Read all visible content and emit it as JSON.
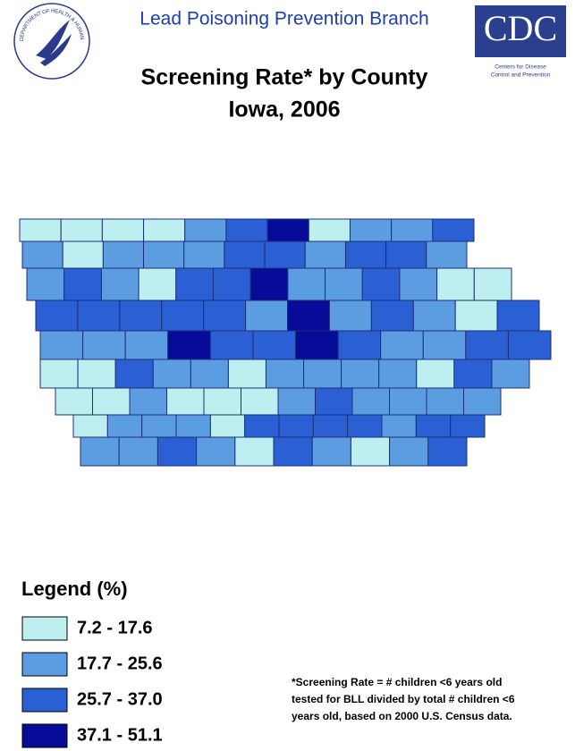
{
  "header": {
    "branch": "Lead Poisoning Prevention Branch",
    "seal_text": "DEPARTMENT OF HEALTH & HUMAN SERVICES·USA",
    "cdc_logo": "CDC",
    "cdc_name_lines": [
      "Centers for Disease",
      "Control and Prevention"
    ]
  },
  "title": [
    "Screening Rate* by County",
    "Iowa, 2006"
  ],
  "legend": {
    "title": "Legend (%)",
    "items": [
      {
        "label": "7.2 - 17.6",
        "color": "#bdeef0"
      },
      {
        "label": "17.7 - 25.6",
        "color": "#5c9de2"
      },
      {
        "label": "25.7 - 37.0",
        "color": "#2b5fd4"
      },
      {
        "label": "37.1 - 51.1",
        "color": "#060c98"
      }
    ]
  },
  "footnote": [
    "*Screening Rate = # children <6 years old",
    "tested for BLL divided by total # children <6",
    "years old, based on 2000 U.S. Census data."
  ]
}
